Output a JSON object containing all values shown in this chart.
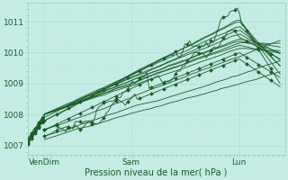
{
  "xlabel": "Pression niveau de la mer( hPa )",
  "xtick_labels": [
    "VenDim",
    "Sam",
    "Lun"
  ],
  "xtick_positions": [
    0.07,
    0.43,
    0.88
  ],
  "ylim": [
    1006.7,
    1011.6
  ],
  "xlim": [
    0.0,
    1.07
  ],
  "yticks": [
    1007,
    1008,
    1009,
    1010,
    1011
  ],
  "bg_color": "#c5ede6",
  "grid_color_major": "#b0ddd6",
  "grid_color_minor": "#bce8e1",
  "line_color": "#1a5c28",
  "line_width": 0.6,
  "marker_size": 2.0
}
